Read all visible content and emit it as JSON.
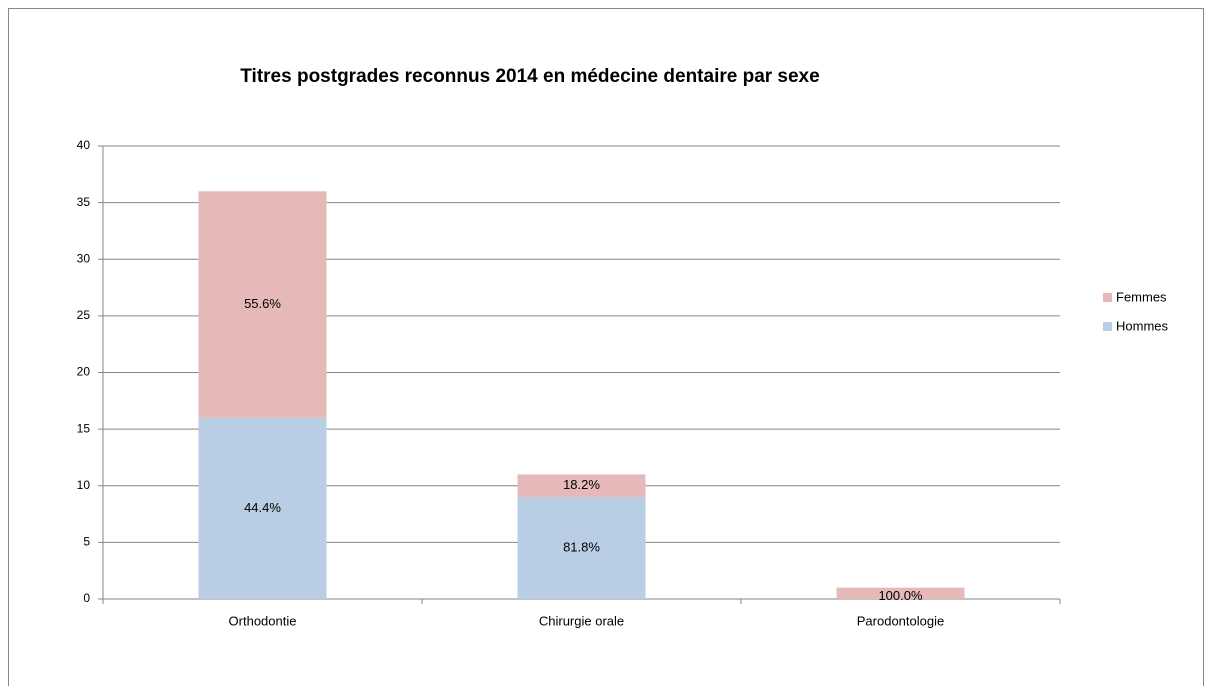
{
  "chart_data": {
    "type": "stacked_bar",
    "title": "Titres postgrades reconnus 2014 en médecine dentaire par sexe",
    "categories": [
      "Orthodontie",
      "Chirurgie orale",
      "Parodontologie"
    ],
    "series": [
      {
        "name": "Hommes",
        "color": "#b9cde5",
        "values": [
          16,
          9,
          0
        ],
        "shares": [
          44.4,
          81.8,
          null
        ],
        "share_labels": [
          "44.4%",
          "81.8%",
          null
        ]
      },
      {
        "name": "Femmes",
        "color": "#e6b9b8",
        "values": [
          20,
          2,
          1
        ],
        "shares": [
          55.6,
          18.2,
          100.0
        ],
        "share_labels": [
          "55.6%",
          "18.2%",
          "100.0%"
        ]
      }
    ],
    "ylim": [
      0,
      40
    ],
    "yticks": [
      0,
      5,
      10,
      15,
      20,
      25,
      30,
      35,
      40
    ],
    "grid": true,
    "legend": "right"
  }
}
